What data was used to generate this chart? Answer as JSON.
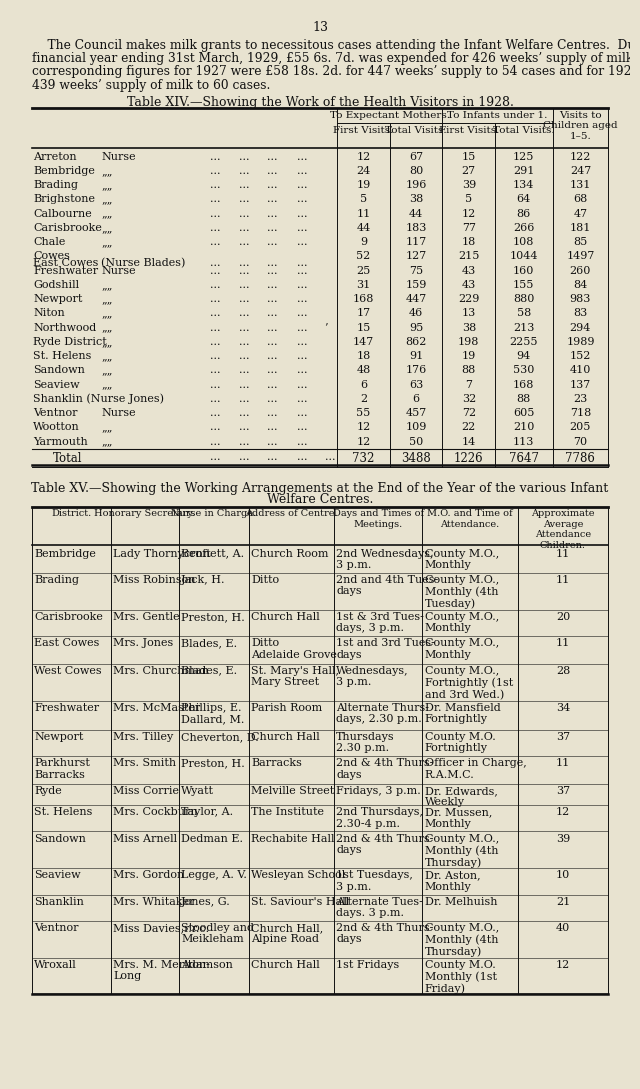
{
  "bg_color": "#e8e3d0",
  "text_color": "#1a1a1a",
  "page_number": "13",
  "intro_text_lines": [
    "    The Council makes milk grants to necessitous cases attending the Infant Welfare Centres.  During the",
    "financial year ending 31st March, 1929, £55 6s. 7d. was expended for 426 weeks’ supply of milk to 54 cases.   The",
    "corresponding figures for 1927 were £58 18s. 2d. for 447 weeks’ supply to 54 cases and for 1926, £53 18s. 2d. for",
    "439 weeks’ supply of milk to 60 cases."
  ],
  "table14_title": "Table XIV.—Showing the Work of the Health Visitors in 1928.",
  "table14_rows": [
    [
      "Arreton",
      "Nurse",
      "12",
      "67",
      "15",
      "125",
      "122"
    ],
    [
      "Bembridge",
      "„„",
      "24",
      "80",
      "27",
      "291",
      "247"
    ],
    [
      "Brading",
      "„„",
      "19",
      "196",
      "39",
      "134",
      "131"
    ],
    [
      "Brighstone",
      "„„",
      "5",
      "38",
      "5",
      "64",
      "68"
    ],
    [
      "Calbourne",
      "„„",
      "11",
      "44",
      "12",
      "86",
      "47"
    ],
    [
      "Carisbrooke",
      "„„",
      "44",
      "183",
      "77",
      "266",
      "181"
    ],
    [
      "Chale",
      "„„",
      "9",
      "117",
      "18",
      "108",
      "85"
    ],
    [
      "Cowes",
      "(Nurse Blades)",
      "52",
      "127",
      "215",
      "1044",
      "1497"
    ],
    [
      "Freshwater",
      "Nurse",
      "25",
      "75",
      "43",
      "160",
      "260"
    ],
    [
      "Godshill",
      "„„",
      "31",
      "159",
      "43",
      "155",
      "84"
    ],
    [
      "Newport",
      "„„",
      "168",
      "447",
      "229",
      "880",
      "983"
    ],
    [
      "Niton",
      "„„",
      "17",
      "46",
      "13",
      "58",
      "83"
    ],
    [
      "Northwood",
      "„„",
      "15",
      "95",
      "38",
      "213",
      "294"
    ],
    [
      "Ryde District",
      "„„",
      "147",
      "862",
      "198",
      "2255",
      "1989"
    ],
    [
      "St. Helens",
      "„„",
      "18",
      "91",
      "19",
      "94",
      "152"
    ],
    [
      "Sandown",
      "„„",
      "48",
      "176",
      "88",
      "530",
      "410"
    ],
    [
      "Seaview",
      "„„",
      "6",
      "63",
      "7",
      "168",
      "137"
    ],
    [
      "Shanklin (Nurse Jones)",
      "",
      "2",
      "6",
      "32",
      "88",
      "23"
    ],
    [
      "Ventnor",
      "Nurse",
      "55",
      "457",
      "72",
      "605",
      "718"
    ],
    [
      "Wootton",
      "„„",
      "12",
      "109",
      "22",
      "210",
      "205"
    ],
    [
      "Yarmouth",
      "„„",
      "12",
      "50",
      "14",
      "113",
      "70"
    ]
  ],
  "table14_cowes_line2": "East Cowes",
  "table14_northwood_prefix": "' ",
  "table14_total": [
    "732",
    "3488",
    "1226",
    "7647",
    "7786"
  ],
  "table15_title_line1": "Table XV.—Showing the Working Arrangements at the End of the Year of the various Infant",
  "table15_title_line2": "Welfare Centres.",
  "table15_rows": [
    [
      "Bembridge",
      "Lady Thornycroft",
      "Bennett, A.",
      "Church Room",
      "2nd Wednesdays,\n3 p.m.",
      "County M.O.,\nMonthly",
      "11"
    ],
    [
      "Brading",
      "Miss Robinson",
      "Jack, H.",
      "Ditto",
      "2nd and 4th Tues-\ndays",
      "County M.O.,\nMonthly (4th\nTuesday)",
      "11"
    ],
    [
      "Carisbrooke",
      "Mrs. Gentle",
      "Preston, H.",
      "Church Hall",
      "1st & 3rd Tues-\ndays, 3 p.m.",
      "County M.O.,\nMonthly",
      "20"
    ],
    [
      "East Cowes",
      "Mrs. Jones",
      "Blades, E.",
      "Ditto\nAdelaide Grove",
      "1st and 3rd Tues-\ndays",
      "County M.O.,\nMonthly",
      "11"
    ],
    [
      "West Cowes",
      "Mrs. Churchman",
      "Blades, E.",
      "St. Mary's Hall,\nMary Street",
      "Wednesdays,\n3 p.m.",
      "County M.O.,\nFortnightly (1st\nand 3rd Wed.)",
      "28"
    ],
    [
      "Freshwater",
      "Mrs. McMaster",
      "Phillips, E.\nDallard, M.",
      "Parish Room",
      "Alternate Thurs-\ndays, 2.30 p.m.",
      "Dr. Mansfield\nFortnightly",
      "34"
    ],
    [
      "Newport",
      "Mrs. Tilley",
      "Cheverton, D.",
      "Church Hall",
      "Thursdays\n2.30 p.m.",
      "County M.O.\nFortnightly",
      "37"
    ],
    [
      "Parkhurst\nBarracks",
      "Mrs. Smith",
      "Preston, H.",
      "Barracks",
      "2nd & 4th Thurs-\ndays",
      "Officer in Charge,\nR.A.M.C.",
      "11"
    ],
    [
      "Ryde",
      "Miss Corrie",
      "Wyatt",
      "Melville Street",
      "Fridays, 3 p.m.",
      "Dr. Edwards,\nWeekly",
      "37"
    ],
    [
      "St. Helens",
      "Mrs. Cockburn",
      "Taylor, A.",
      "The Institute",
      "2nd Thursdays,\n2.30-4 p.m.",
      "Dr. Mussen,\nMonthly",
      "12"
    ],
    [
      "Sandown",
      "Miss Arnell",
      "Dedman E.",
      "Rechabite Hall",
      "2nd & 4th Thurs-\ndays",
      "County M.O.,\nMonthly (4th\nThursday)",
      "39"
    ],
    [
      "Seaview",
      "Mrs. Gordon",
      "Legge, A. V.",
      "Wesleyan School",
      "1st Tuesdays,\n3 p.m.",
      "Dr. Aston,\nMonthly",
      "10"
    ],
    [
      "Shanklin",
      "Mrs. Whitaker",
      "Jones, G.",
      "St. Saviour's Hall",
      "Alternate Tues-\ndays. 3 p.m.",
      "Dr. Melhuish",
      "21"
    ],
    [
      "Ventnor",
      "Miss Davies,r.r.c.",
      "Stoodley and\nMeikleham",
      "Church Hall,\nAlpine Road",
      "2nd & 4th Thurs-\ndays",
      "County M.O.,\nMonthly (4th\nThursday)",
      "40"
    ],
    [
      "Wroxall",
      "Mrs. M. Meriton-\nLong",
      "Adamson",
      "Church Hall",
      "1st Fridays",
      "County M.O.\nMonthly (1st\nFriday)",
      "12"
    ]
  ]
}
